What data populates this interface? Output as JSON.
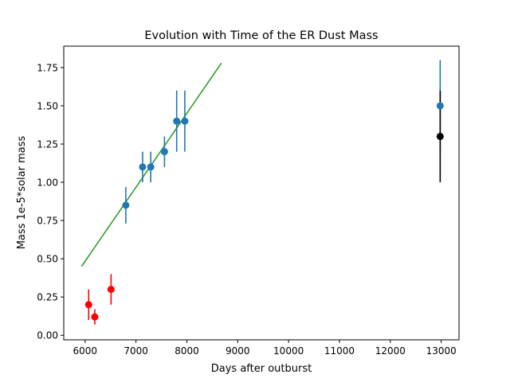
{
  "chart_data": {
    "type": "scatter",
    "title": "Evolution with Time of the ER Dust Mass",
    "xlabel": "Days after outburst",
    "ylabel": "Mass 1e-5*solar mass",
    "xlim": [
      5580,
      13350
    ],
    "ylim": [
      -0.03,
      1.89
    ],
    "xticks": [
      6000,
      7000,
      8000,
      9000,
      10000,
      11000,
      12000,
      13000
    ],
    "xtick_labels": [
      "6000",
      "7000",
      "8000",
      "9000",
      "10000",
      "11000",
      "12000",
      "13000"
    ],
    "yticks": [
      0.0,
      0.25,
      0.5,
      0.75,
      1.0,
      1.25,
      1.5,
      1.75
    ],
    "ytick_labels": [
      "0.00",
      "0.25",
      "0.50",
      "0.75",
      "1.00",
      "1.25",
      "1.50",
      "1.75"
    ],
    "series": [
      {
        "name": "blue points",
        "color": "#1f77b4",
        "points": [
          {
            "x": 6800,
            "y": 0.85,
            "ylo": 0.73,
            "yhi": 0.97
          },
          {
            "x": 7130,
            "y": 1.1,
            "ylo": 1.0,
            "yhi": 1.2
          },
          {
            "x": 7290,
            "y": 1.1,
            "ylo": 1.0,
            "yhi": 1.2
          },
          {
            "x": 7560,
            "y": 1.2,
            "ylo": 1.1,
            "yhi": 1.3
          },
          {
            "x": 7800,
            "y": 1.4,
            "ylo": 1.2,
            "yhi": 1.6
          },
          {
            "x": 7960,
            "y": 1.4,
            "ylo": 1.2,
            "yhi": 1.6
          },
          {
            "x": 12980,
            "y": 1.5,
            "ylo": 1.2,
            "yhi": 1.8
          }
        ]
      },
      {
        "name": "red points",
        "color": "#ff0000",
        "points": [
          {
            "x": 6070,
            "y": 0.2,
            "ylo": 0.1,
            "yhi": 0.3
          },
          {
            "x": 6190,
            "y": 0.12,
            "ylo": 0.07,
            "yhi": 0.17
          },
          {
            "x": 6510,
            "y": 0.3,
            "ylo": 0.2,
            "yhi": 0.4
          }
        ]
      },
      {
        "name": "black point",
        "color": "#000000",
        "points": [
          {
            "x": 12980,
            "y": 1.3,
            "ylo": 1.0,
            "yhi": 1.6
          }
        ]
      }
    ],
    "fit_line": {
      "color": "#2ca02c",
      "x": [
        5930,
        8680
      ],
      "y": [
        0.45,
        1.78
      ]
    }
  }
}
